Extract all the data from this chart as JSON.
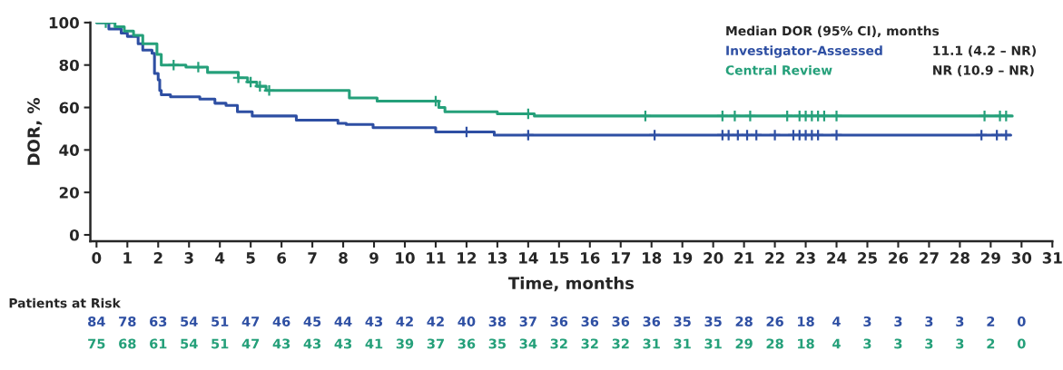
{
  "chart_data": {
    "type": "step",
    "xlabel": "Time, months",
    "ylabel": "DOR, %",
    "legend_title": "Median DOR (95% CI), months",
    "legend": "top right",
    "grid": false,
    "xlim": [
      -0.2,
      31
    ],
    "xticks": [
      0,
      1,
      2,
      3,
      4,
      5,
      6,
      7,
      8,
      9,
      10,
      11,
      12,
      13,
      14,
      15,
      16,
      17,
      18,
      19,
      20,
      21,
      22,
      23,
      24,
      25,
      26,
      27,
      28,
      29,
      30,
      31
    ],
    "ylim": [
      -3,
      100
    ],
    "yticks": [
      0,
      20,
      40,
      60,
      80,
      100
    ],
    "series": [
      {
        "name": "Investigator-Assessed",
        "color": "#2e4fa3",
        "x": [
          0,
          0.4,
          0.8,
          1.0,
          1.35,
          1.5,
          1.8,
          1.88,
          2.0,
          2.05,
          2.1,
          2.4,
          3.35,
          3.84,
          4.2,
          4.57,
          5.05,
          6.48,
          7.83,
          8.1,
          8.97,
          11.0,
          12.9,
          29.65
        ],
        "values": [
          100,
          97,
          95,
          93.5,
          90,
          87,
          85.5,
          76,
          73,
          68,
          66,
          65,
          64,
          62,
          61,
          58,
          56,
          54,
          52.5,
          52,
          50.5,
          48.5,
          47,
          47
        ]
      },
      {
        "name": "Central Review",
        "color": "#25a07a",
        "x": [
          0,
          0.6,
          0.9,
          1.2,
          1.5,
          1.96,
          2.1,
          2.9,
          3.6,
          4.6,
          4.9,
          5.2,
          5.5,
          8.2,
          9.1,
          11.1,
          11.3,
          13.0,
          14.2,
          29.7
        ],
        "values": [
          100,
          98,
          96,
          94,
          90,
          85,
          80,
          79,
          76.5,
          74,
          72,
          70,
          68,
          64.5,
          63,
          60,
          58,
          57,
          56,
          56
        ]
      },
      {
        "type": "scatter",
        "marker": "cross",
        "color": "#2e4fa3",
        "x": [
          12.0,
          14.0,
          18.1,
          20.3,
          20.5,
          20.8,
          21.1,
          21.4,
          22.0,
          22.6,
          22.8,
          23.0,
          23.2,
          23.4,
          24.0,
          28.7,
          29.2,
          29.5
        ],
        "values": [
          48.5,
          47,
          47,
          47,
          47,
          47,
          47,
          47,
          47,
          47,
          47,
          47,
          47,
          47,
          47,
          47,
          47,
          47
        ]
      },
      {
        "type": "scatter",
        "marker": "cross",
        "color": "#25a07a",
        "x": [
          0.3,
          2.5,
          3.3,
          4.6,
          5.0,
          5.3,
          5.6,
          11.0,
          14.0,
          17.8,
          20.3,
          20.7,
          21.2,
          22.4,
          22.8,
          23.0,
          23.2,
          23.4,
          23.6,
          24.0,
          28.8,
          29.3,
          29.5
        ],
        "values": [
          100,
          80,
          79,
          74,
          72,
          70,
          68,
          63,
          57,
          56,
          56,
          56,
          56,
          56,
          56,
          56,
          56,
          56,
          56,
          56,
          56,
          56,
          56
        ]
      }
    ],
    "annotations": [
      "Patients at Risk",
      "84 78 63 54 51 47 46 45 44 43 42 42 40 38 37 36 36 36 36 35 35 28 26 18 4 3 3 3 3 2 0",
      "75 68 61 54 51 47 43 43 43 41 39 37 36 35 34 32 32 32 31 31 31 29 28 18 4 3 3 3 3 2 0",
      "11.1 (4.2 – NR)",
      "NR (10.9 – NR)"
    ]
  }
}
